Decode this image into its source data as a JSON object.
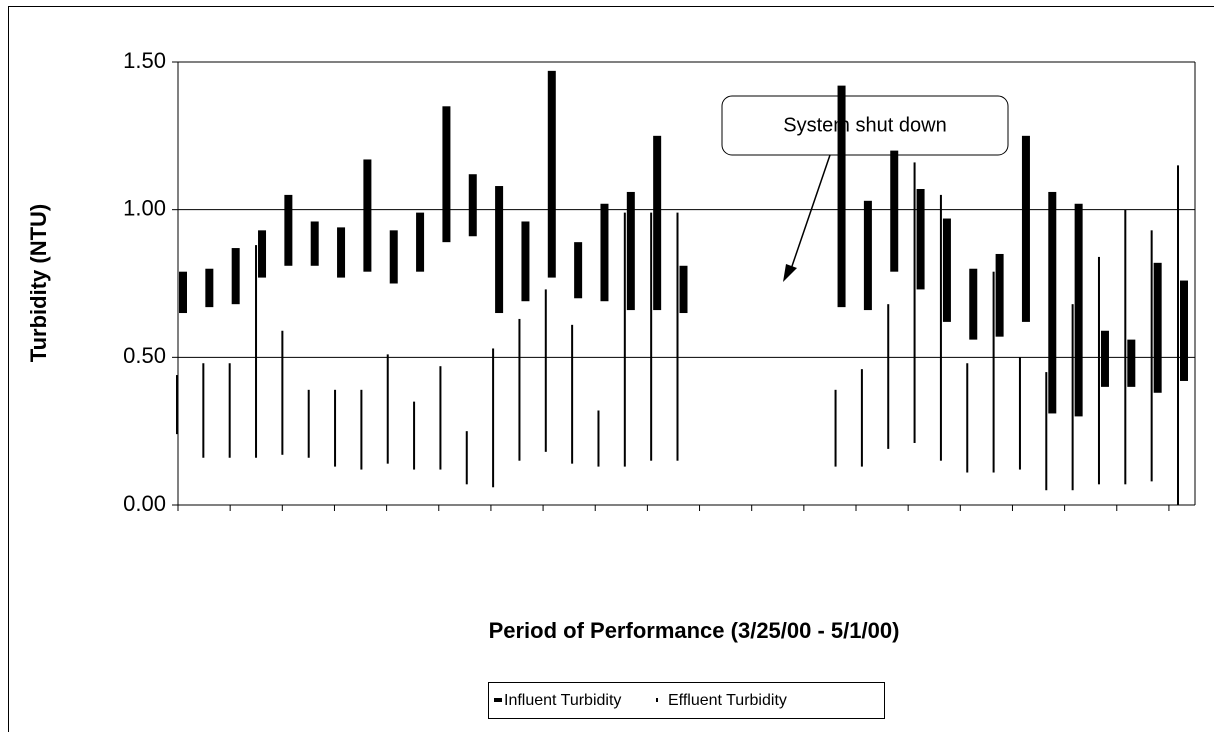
{
  "chart_data": {
    "type": "range",
    "xlabel": "Period of Performance (3/25/00 - 5/1/00)",
    "ylabel": "Turbidity (NTU)",
    "annotation": "System shut down",
    "categories": [
      null,
      null,
      null,
      null,
      null,
      null,
      null,
      null,
      null,
      null,
      null,
      null,
      null,
      null,
      null,
      null,
      null,
      null,
      null,
      null,
      null,
      null,
      null,
      null,
      null,
      null,
      null,
      null,
      null,
      null,
      null,
      null,
      null,
      null,
      null,
      null,
      null,
      null,
      null
    ],
    "series": [
      {
        "name": "Influent Turbidity",
        "color": "#000000",
        "low": [
          0.65,
          0.67,
          0.68,
          0.77,
          0.81,
          0.81,
          0.77,
          0.79,
          0.75,
          0.79,
          0.89,
          0.91,
          0.65,
          0.69,
          0.77,
          0.7,
          0.69,
          0.66,
          0.66,
          0.65,
          null,
          null,
          null,
          null,
          null,
          0.67,
          0.66,
          0.79,
          0.73,
          0.62,
          0.56,
          0.57,
          0.62,
          0.31,
          0.3,
          0.4,
          0.4,
          0.38,
          0.42
        ],
        "high": [
          0.79,
          0.8,
          0.87,
          0.93,
          1.05,
          0.96,
          0.94,
          1.17,
          0.93,
          0.99,
          1.35,
          1.12,
          1.08,
          0.96,
          1.47,
          0.89,
          1.02,
          1.06,
          1.25,
          0.81,
          null,
          null,
          null,
          null,
          null,
          1.42,
          1.03,
          1.2,
          1.07,
          0.97,
          0.8,
          0.85,
          1.25,
          1.06,
          1.02,
          0.59,
          0.56,
          0.82,
          0.76
        ]
      },
      {
        "name": "Effluent Turbidity",
        "color": "#000000",
        "low": [
          0.24,
          0.16,
          0.16,
          0.16,
          0.17,
          0.16,
          0.13,
          0.12,
          0.14,
          0.12,
          0.12,
          0.07,
          0.06,
          0.15,
          0.18,
          0.14,
          0.13,
          0.13,
          0.15,
          0.15,
          null,
          null,
          null,
          null,
          null,
          0.13,
          0.13,
          0.19,
          0.21,
          0.15,
          0.11,
          0.11,
          0.12,
          0.05,
          0.05,
          0.07,
          0.07,
          0.08,
          0.0
        ],
        "high": [
          0.44,
          0.48,
          0.48,
          0.88,
          0.59,
          0.39,
          0.39,
          0.39,
          0.51,
          0.35,
          0.47,
          0.25,
          0.53,
          0.63,
          0.73,
          0.61,
          0.32,
          0.99,
          0.99,
          0.99,
          null,
          null,
          null,
          null,
          null,
          0.39,
          0.46,
          0.68,
          1.16,
          1.05,
          0.48,
          0.79,
          0.5,
          0.45,
          0.68,
          0.84,
          1.0,
          0.93,
          1.15
        ]
      }
    ],
    "ylim": [
      0,
      1.5
    ],
    "yticks": [
      {
        "value": 0,
        "label": "0.00"
      },
      {
        "value": 0.5,
        "label": "0.50"
      },
      {
        "value": 1,
        "label": "1.00"
      },
      {
        "value": 1.5,
        "label": "1.50"
      }
    ],
    "grid": true,
    "legend": "bottom"
  }
}
